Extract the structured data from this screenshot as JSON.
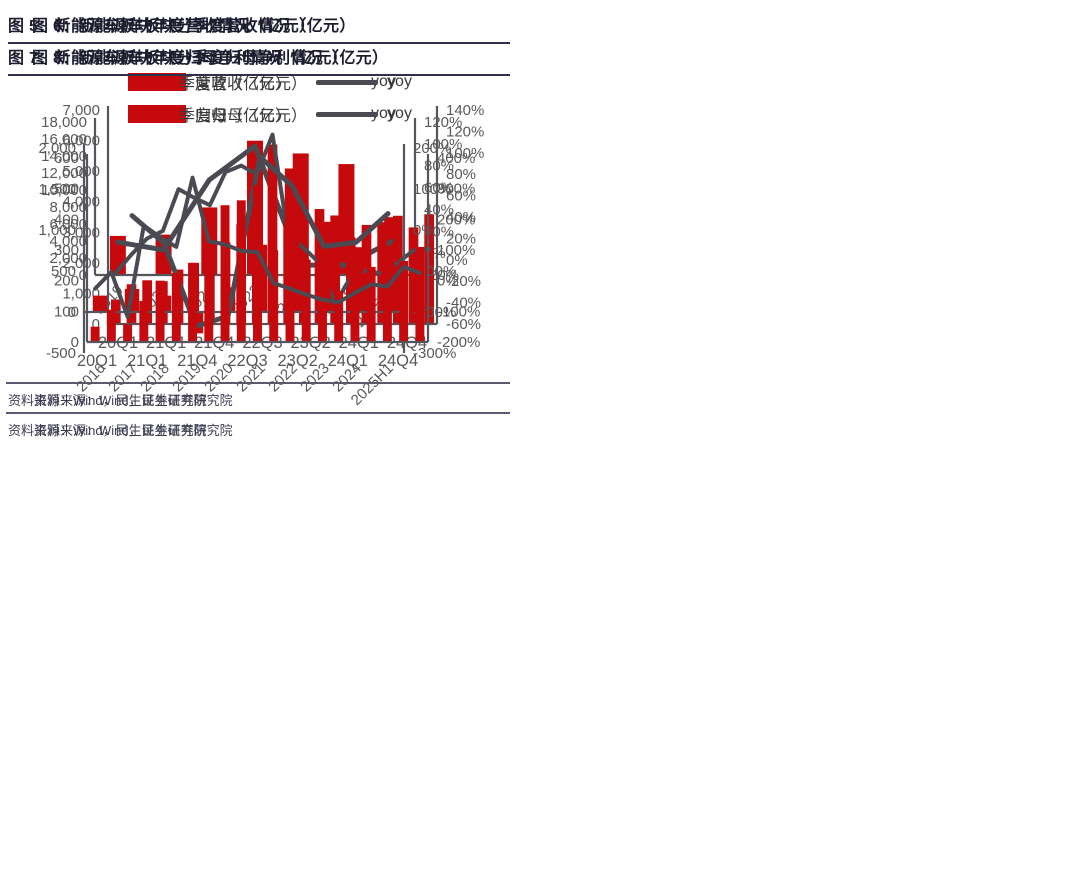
{
  "colors": {
    "bar_red": "#c5090c",
    "line_gray": "#4a4a52",
    "axis_gray": "#55555d",
    "tick_label_gray": "#595959",
    "title_dark": "#1d1d30",
    "source_text": "#3d3d52"
  },
  "chart_data": [
    {
      "type": "bar+line",
      "title": "图 5：新能源车板块年度营收情况（亿元）",
      "legend_bar": "营收（亿元）",
      "legend_line": "yoy",
      "legend_position": "top-center",
      "grid": false,
      "categories": [
        "2019",
        "2020",
        "2021",
        "2022",
        "2023",
        "2024",
        "2025H1"
      ],
      "bar_values": [
        4600,
        4750,
        7950,
        15800,
        14300,
        13050,
        6800
      ],
      "line_values_pct": [
        10,
        3,
        67,
        98,
        -11,
        -11,
        11
      ],
      "left_axis": {
        "min": 0,
        "max": 18000,
        "step": 2000
      },
      "right_axis": {
        "min": -20,
        "max": 120,
        "step": 20,
        "suffix": "%"
      },
      "x_tick_labels": null,
      "x_label_rotation": 45,
      "source": "资料来源：Wind，民生证券研究院"
    },
    {
      "type": "bar+line",
      "title": "图 6：新能源车板块分季度营收情况（亿元）",
      "legend_bar": "季度营收（亿元）",
      "legend_line": "yoy",
      "legend_position": "top-center",
      "grid": false,
      "categories": [
        "20Q1",
        "20Q2",
        "20Q3",
        "20Q4",
        "21Q1",
        "21Q2",
        "21Q3",
        "21Q4",
        "22Q1",
        "22Q2",
        "22Q3",
        "22Q4",
        "23Q1",
        "23Q2",
        "23Q3",
        "23Q4",
        "24Q1",
        "24Q2",
        "24Q3",
        "24Q4",
        "25Q1"
      ],
      "bar_values": [
        800,
        1300,
        1430,
        1400,
        1780,
        2000,
        2670,
        2670,
        3260,
        3880,
        5870,
        3370,
        3550,
        3760,
        3550,
        2830,
        3240,
        3330,
        3540,
        3160,
        3590
      ],
      "line_values_pct": [
        -12,
        5,
        20,
        27,
        66,
        58,
        51,
        82,
        88,
        80,
        117,
        22,
        11,
        -3,
        -41,
        -16,
        -10,
        -13,
        -3,
        9,
        10
      ],
      "left_axis": {
        "min": 0,
        "max": 7000,
        "step": 1000
      },
      "right_axis": {
        "min": -60,
        "max": 140,
        "step": 20,
        "suffix": "%"
      },
      "x_tick_labels": [
        "20Q1",
        "21Q1",
        "21Q4",
        "22Q3",
        "23Q2",
        "24Q1",
        "24Q4"
      ],
      "x_label_rotation": 0,
      "source": "资料来源：Wind，民生证券研究院"
    },
    {
      "type": "bar+line",
      "title": "图 7：新能源车板块年度归母净利情况（亿元）",
      "legend_bar": "归母（亿元）",
      "legend_line": "yoy",
      "legend_position": "top-center",
      "grid": false,
      "categories": [
        "2016",
        "2017",
        "2018",
        "2019",
        "2020",
        "2021",
        "2022",
        "2023",
        "2024",
        "2025H1"
      ],
      "bar_values": [
        200,
        280,
        200,
        -260,
        300,
        820,
        1750,
        1100,
        790,
        580
      ],
      "line_values_pct": [
        null,
        35,
        -32,
        -235,
        -210,
        178,
        108,
        -40,
        -30,
        40
      ],
      "left_axis": {
        "min": -500,
        "max": 2000,
        "step": 500
      },
      "right_axis": {
        "min": -300,
        "max": 200,
        "step": 100,
        "suffix": "%"
      },
      "x_tick_labels": null,
      "x_label_rotation": 45,
      "source": "资料来源：Wind，民生证券研究院"
    },
    {
      "type": "bar+line",
      "title": "图 8：新能源车板块分季度归母净利情况（亿元）",
      "legend_bar": "季度归母（亿元）",
      "legend_line": "yoy",
      "legend_position": "top-center",
      "grid": false,
      "categories": [
        "20Q1",
        "20Q2",
        "20Q3",
        "20Q4",
        "21Q1",
        "21Q2",
        "21Q3",
        "21Q4",
        "22Q1",
        "22Q2",
        "22Q3",
        "22Q4",
        "23Q1",
        "23Q2",
        "23Q3",
        "23Q4",
        "24Q1",
        "24Q2",
        "24Q3",
        "24Q4",
        "25Q1"
      ],
      "bar_values": [
        50,
        105,
        58,
        134,
        200,
        225,
        258,
        312,
        446,
        462,
        511,
        299,
        337,
        269,
        177,
        166,
        236,
        245,
        145,
        264,
        310
      ],
      "line_values_pct": [
        -26,
        28,
        -118,
        180,
        142,
        110,
        336,
        129,
        118,
        97,
        93,
        -8,
        -26,
        -45,
        -62,
        -70,
        -40,
        -12,
        -19,
        45,
        25
      ],
      "left_axis": {
        "min": 0,
        "max": 600,
        "step": 100
      },
      "right_axis": {
        "min": -200,
        "max": 400,
        "step": 100,
        "suffix": "%"
      },
      "x_tick_labels": [
        "20Q1",
        "21Q1",
        "21Q4",
        "22Q3",
        "23Q2",
        "24Q1",
        "24Q4"
      ],
      "x_label_rotation": 0,
      "source": "资料来源：Wind，民生证券研究院"
    }
  ]
}
